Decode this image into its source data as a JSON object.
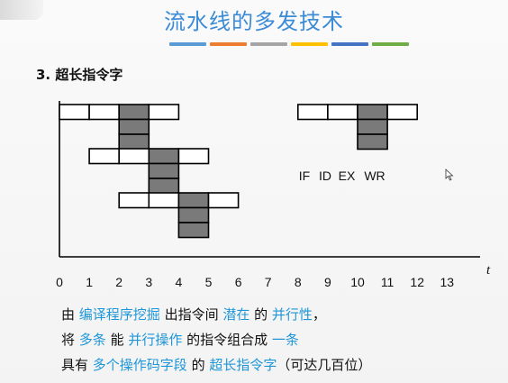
{
  "slide": {
    "title": "流水线的多发技术",
    "stripe_colors": [
      "#5b9bd5",
      "#ed7d31",
      "#a5a5a5",
      "#ffc000",
      "#4472c4",
      "#70ad47"
    ],
    "section_heading": "3.  超长指令字"
  },
  "diagram": {
    "time_axis_label": "t",
    "tick_labels": [
      "0",
      "1",
      "2",
      "3",
      "4",
      "5",
      "6",
      "7",
      "8",
      "9",
      "10",
      "11",
      "12",
      "13"
    ],
    "stage_labels": [
      "IF",
      "ID",
      "EX",
      "WR"
    ],
    "colors": {
      "ex_fill": "#7a7a7a",
      "cell_fill": "#ffffff",
      "stroke": "#000000"
    },
    "instruction_groups": [
      {
        "start_time": 0,
        "stages": 4,
        "ex_stage": 2,
        "parallel_ex_units": 3
      },
      {
        "start_time": 1,
        "stages": 4,
        "ex_stage": 2,
        "parallel_ex_units": 3
      },
      {
        "start_time": 2,
        "stages": 4,
        "ex_stage": 2,
        "parallel_ex_units": 3
      }
    ],
    "legend_group": {
      "start_time": 8,
      "stages": 4,
      "ex_stage": 2,
      "parallel_ex_units": 3
    }
  },
  "captions": {
    "line1": [
      {
        "text": "由 ",
        "hl": false
      },
      {
        "text": "编译程序挖掘",
        "hl": true
      },
      {
        "text": " 出指令间 ",
        "hl": false
      },
      {
        "text": "潜在",
        "hl": true
      },
      {
        "text": " 的 ",
        "hl": false
      },
      {
        "text": "并行性",
        "hl": true
      },
      {
        "text": "，",
        "hl": false
      }
    ],
    "line2": [
      {
        "text": "将 ",
        "hl": false
      },
      {
        "text": "多条",
        "hl": true
      },
      {
        "text": " 能 ",
        "hl": false
      },
      {
        "text": "并行操作",
        "hl": true
      },
      {
        "text": " 的指令组合成 ",
        "hl": false
      },
      {
        "text": "一条",
        "hl": true
      }
    ],
    "line3": [
      {
        "text": "具有 ",
        "hl": false
      },
      {
        "text": "多个操作码字段",
        "hl": true
      },
      {
        "text": " 的 ",
        "hl": false
      },
      {
        "text": "超长指令字",
        "hl": true
      },
      {
        "text": "（可达几百位）",
        "hl": false
      }
    ]
  }
}
